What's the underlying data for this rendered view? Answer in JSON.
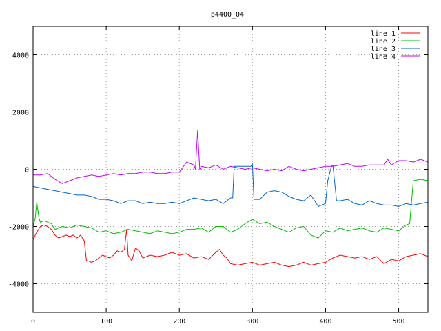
{
  "chart_data": {
    "type": "line",
    "title": "p4400_04",
    "xlabel": "",
    "ylabel": "",
    "xlim": [
      0,
      540
    ],
    "ylim": [
      -5000,
      5000
    ],
    "x_ticks": [
      0,
      100,
      200,
      300,
      400,
      500
    ],
    "y_ticks": [
      -4000,
      -2000,
      0,
      2000,
      4000
    ],
    "grid": true,
    "legend_position": "top-right",
    "series": [
      {
        "name": "line 1",
        "color": "#ff0000",
        "x": [
          0,
          5,
          10,
          15,
          20,
          25,
          30,
          35,
          40,
          45,
          50,
          55,
          60,
          65,
          70,
          73,
          75,
          80,
          85,
          90,
          95,
          100,
          105,
          110,
          115,
          120,
          125,
          128,
          130,
          135,
          140,
          145,
          150,
          155,
          160,
          170,
          180,
          190,
          200,
          210,
          220,
          230,
          240,
          250,
          255,
          260,
          265,
          270,
          280,
          290,
          300,
          310,
          320,
          330,
          340,
          350,
          360,
          370,
          380,
          390,
          400,
          410,
          420,
          430,
          440,
          450,
          460,
          470,
          480,
          490,
          500,
          510,
          520,
          530,
          540
        ],
        "y": [
          -2450,
          -2200,
          -2000,
          -1950,
          -2000,
          -2100,
          -2300,
          -2400,
          -2350,
          -2300,
          -2350,
          -2300,
          -2400,
          -2300,
          -2500,
          -3200,
          -3200,
          -3250,
          -3200,
          -3100,
          -3000,
          -3050,
          -3100,
          -3000,
          -2850,
          -2900,
          -2800,
          -2100,
          -3000,
          -3200,
          -2750,
          -2850,
          -3100,
          -3050,
          -3000,
          -3050,
          -3000,
          -2900,
          -3000,
          -2950,
          -3100,
          -3050,
          -3150,
          -2900,
          -2800,
          -3000,
          -3100,
          -3300,
          -3350,
          -3300,
          -3250,
          -3350,
          -3300,
          -3250,
          -3350,
          -3400,
          -3350,
          -3250,
          -3350,
          -3300,
          -3250,
          -3100,
          -3000,
          -3050,
          -3100,
          -3050,
          -3150,
          -3050,
          -3300,
          -3150,
          -3200,
          -3050,
          -3000,
          -2950,
          -3050
        ]
      },
      {
        "name": "line 2",
        "color": "#00c000",
        "x": [
          0,
          3,
          5,
          8,
          10,
          15,
          20,
          25,
          30,
          40,
          50,
          60,
          70,
          80,
          90,
          100,
          110,
          120,
          130,
          140,
          150,
          160,
          170,
          180,
          190,
          200,
          210,
          220,
          230,
          240,
          250,
          260,
          270,
          280,
          290,
          300,
          310,
          320,
          330,
          340,
          350,
          360,
          370,
          380,
          390,
          400,
          410,
          420,
          430,
          440,
          450,
          460,
          470,
          480,
          490,
          500,
          510,
          515,
          520,
          530,
          540
        ],
        "y": [
          -2000,
          -1700,
          -1150,
          -1700,
          -1850,
          -1800,
          -1850,
          -1900,
          -2100,
          -2000,
          -2050,
          -1950,
          -2000,
          -2050,
          -2200,
          -2150,
          -2250,
          -2200,
          -2100,
          -2150,
          -2200,
          -2250,
          -2150,
          -2200,
          -2250,
          -2200,
          -2100,
          -2100,
          -2050,
          -2200,
          -2000,
          -2000,
          -2200,
          -2100,
          -1900,
          -1750,
          -1900,
          -1850,
          -2000,
          -2100,
          -2200,
          -2050,
          -2000,
          -2300,
          -2400,
          -2150,
          -2200,
          -2050,
          -2150,
          -2100,
          -2050,
          -2150,
          -2200,
          -2050,
          -2100,
          -2150,
          -1950,
          -1900,
          -400,
          -350,
          -400
        ]
      },
      {
        "name": "line 3",
        "color": "#0066cc",
        "x": [
          0,
          10,
          20,
          30,
          40,
          50,
          60,
          70,
          80,
          90,
          100,
          110,
          120,
          130,
          140,
          150,
          160,
          170,
          180,
          190,
          200,
          210,
          220,
          230,
          240,
          250,
          260,
          270,
          273,
          275,
          285,
          290,
          295,
          298,
          300,
          302,
          310,
          320,
          330,
          340,
          350,
          360,
          370,
          380,
          390,
          400,
          403,
          408,
          410,
          415,
          420,
          430,
          440,
          450,
          460,
          470,
          480,
          490,
          500,
          510,
          520,
          530,
          540
        ],
        "y": [
          -600,
          -650,
          -700,
          -750,
          -800,
          -850,
          -900,
          -900,
          -950,
          -1050,
          -1050,
          -1100,
          -1200,
          -1100,
          -1100,
          -1200,
          -1150,
          -1200,
          -1200,
          -1150,
          -1200,
          -1100,
          -1000,
          -1050,
          -1100,
          -1050,
          -1200,
          -1000,
          -1000,
          100,
          100,
          100,
          100,
          100,
          200,
          -1050,
          -1050,
          -800,
          -750,
          -800,
          -950,
          -1050,
          -1100,
          -900,
          -1300,
          -1200,
          -400,
          100,
          150,
          -1100,
          -1100,
          -1050,
          -1200,
          -1250,
          -1100,
          -1200,
          -1250,
          -1250,
          -1300,
          -1200,
          -1250,
          -1200,
          -1150
        ]
      },
      {
        "name": "line 4",
        "color": "#c000ff",
        "x": [
          0,
          10,
          20,
          30,
          40,
          50,
          60,
          70,
          80,
          90,
          100,
          110,
          120,
          130,
          140,
          150,
          160,
          170,
          180,
          190,
          200,
          210,
          220,
          222,
          225,
          228,
          230,
          240,
          250,
          260,
          270,
          280,
          290,
          300,
          310,
          320,
          330,
          340,
          350,
          360,
          370,
          380,
          390,
          400,
          410,
          420,
          430,
          440,
          450,
          460,
          470,
          480,
          485,
          490,
          500,
          510,
          520,
          530,
          540
        ],
        "y": [
          -200,
          -200,
          -150,
          -350,
          -500,
          -400,
          -300,
          -250,
          -200,
          -250,
          -200,
          -150,
          -200,
          -150,
          -150,
          -100,
          -100,
          -150,
          -150,
          -100,
          -100,
          250,
          150,
          0,
          1350,
          0,
          100,
          50,
          150,
          0,
          100,
          50,
          0,
          50,
          0,
          -50,
          0,
          -50,
          100,
          0,
          -50,
          0,
          50,
          100,
          100,
          150,
          200,
          100,
          100,
          150,
          150,
          150,
          350,
          150,
          300,
          300,
          250,
          350,
          250
        ]
      }
    ]
  }
}
